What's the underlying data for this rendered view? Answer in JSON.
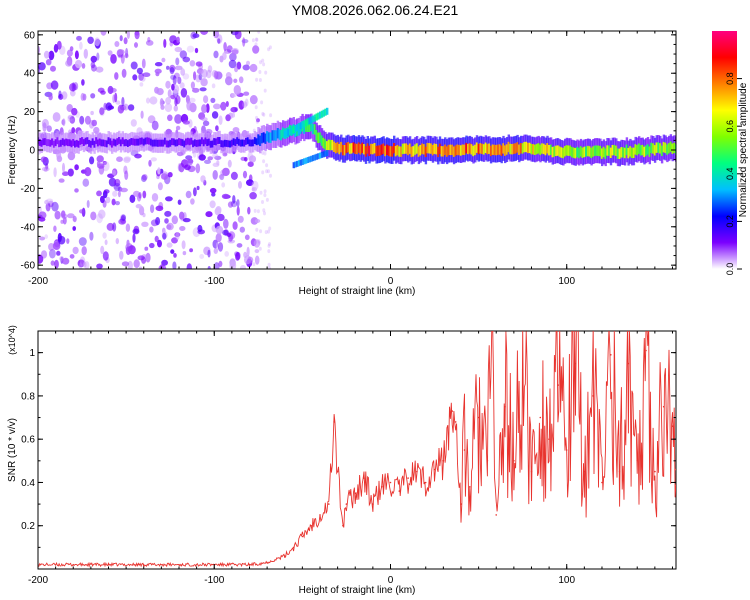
{
  "title": "YM08.2026.062.06.24.E21",
  "chart_data": [
    {
      "type": "heatmap",
      "title": "YM08.2026.062.06.24.E21",
      "xlabel": "Height of straight line (km)",
      "ylabel": "Frequency (Hz)",
      "xlim": [
        -200,
        162
      ],
      "ylim": [
        -62,
        62
      ],
      "x_ticks": [
        -200,
        -100,
        0,
        100
      ],
      "y_ticks": [
        -60,
        -40,
        -20,
        0,
        20,
        40,
        60
      ],
      "colorbar": {
        "label": "Normalized spectral amplitude",
        "range": [
          0,
          1
        ],
        "ticks": [
          0.0,
          0.2,
          0.4,
          0.6,
          0.8
        ],
        "colors": [
          "#ffffff",
          "#7b00ff",
          "#0000ff",
          "#00bfff",
          "#00ff80",
          "#80ff00",
          "#ffff00",
          "#ff8000",
          "#ff0000",
          "#ff0080"
        ]
      },
      "ridge": [
        {
          "x": -200,
          "freq": 4,
          "amp": 0.12
        },
        {
          "x": -150,
          "freq": 4,
          "amp": 0.13
        },
        {
          "x": -100,
          "freq": 4,
          "amp": 0.15
        },
        {
          "x": -80,
          "freq": 4,
          "amp": 0.2
        },
        {
          "x": -70,
          "freq": 7,
          "amp": 0.3
        },
        {
          "x": -55,
          "freq": 10,
          "amp": 0.4
        },
        {
          "x": -45,
          "freq": 13,
          "amp": 0.45
        },
        {
          "x": -38,
          "freq": 3,
          "amp": 0.5
        },
        {
          "x": -30,
          "freq": 1,
          "amp": 0.75
        },
        {
          "x": -10,
          "freq": 0,
          "amp": 0.85
        },
        {
          "x": 10,
          "freq": 0,
          "amp": 0.7
        },
        {
          "x": 40,
          "freq": 0,
          "amp": 0.8
        },
        {
          "x": 80,
          "freq": 1,
          "amp": 0.7
        },
        {
          "x": 100,
          "freq": -1,
          "amp": 0.55
        },
        {
          "x": 130,
          "freq": -1,
          "amp": 0.6
        },
        {
          "x": 162,
          "freq": 1,
          "amp": 0.55
        }
      ]
    },
    {
      "type": "line",
      "xlabel": "Height of straight line (km)",
      "ylabel": "SNR (10 * v/v)",
      "y_multiplier": "(x10^4)",
      "xlim": [
        -200,
        162
      ],
      "ylim": [
        0,
        1.1
      ],
      "x_ticks": [
        -200,
        -100,
        0,
        100
      ],
      "y_ticks": [
        0.2,
        0.4,
        0.6,
        0.8,
        1.0
      ],
      "series": [
        {
          "name": "SNR",
          "color": "#e8332e",
          "x": [
            -200,
            -180,
            -160,
            -140,
            -120,
            -100,
            -80,
            -70,
            -60,
            -55,
            -50,
            -45,
            -40,
            -35,
            -32,
            -30,
            -27,
            -25,
            -20,
            -15,
            -10,
            -5,
            0,
            5,
            10,
            15,
            20,
            25,
            30,
            35,
            37,
            40,
            42,
            45,
            50,
            55,
            58,
            60,
            65,
            70,
            75,
            80,
            85,
            90,
            95,
            100,
            105,
            110,
            115,
            120,
            125,
            130,
            135,
            140,
            145,
            150,
            155,
            160,
            162
          ],
          "values": [
            0.02,
            0.02,
            0.02,
            0.02,
            0.02,
            0.02,
            0.02,
            0.03,
            0.06,
            0.1,
            0.15,
            0.2,
            0.25,
            0.3,
            0.68,
            0.45,
            0.2,
            0.3,
            0.35,
            0.42,
            0.3,
            0.38,
            0.4,
            0.36,
            0.42,
            0.45,
            0.4,
            0.46,
            0.5,
            0.73,
            0.68,
            0.3,
            0.55,
            0.38,
            0.7,
            0.5,
            1.1,
            0.25,
            0.75,
            0.5,
            0.92,
            0.45,
            0.7,
            0.6,
            0.85,
            0.55,
            0.95,
            0.45,
            0.8,
            0.4,
            0.99,
            0.45,
            0.95,
            0.5,
            1.01,
            0.45,
            0.75,
            0.66,
            0.46
          ]
        }
      ]
    }
  ]
}
